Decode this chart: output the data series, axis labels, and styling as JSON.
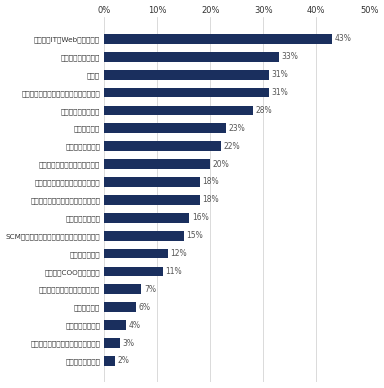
{
  "categories": [
    "技術系（IT・Web・通信系）",
    "経理・財務・会計系",
    "営業系",
    "技術系（建築・設備・土木・プラント）",
    "経営企画・事業企画",
    "人事・総務系",
    "マーケティング系",
    "技術系（電気・電子・半導体）",
    "法務・コンプライアンス・知財系",
    "技術系（機械・メカトロ・自動車）",
    "コンサルタント系",
    "SCM・ロジスティクス・物流・購買・貿易系",
    "不動産系専門職",
    "経営者・COO・経営幹部",
    "技術・専門職系（メディカル）",
    "金融系専門職",
    "サービス・流通系",
    "技術系（化学・素材・食品・衣料）",
    "クリエイティブ系"
  ],
  "values": [
    43,
    33,
    31,
    31,
    28,
    23,
    22,
    20,
    18,
    18,
    16,
    15,
    12,
    11,
    7,
    6,
    4,
    3,
    2
  ],
  "bar_color": "#1a2f5e",
  "label_color": "#333333",
  "value_color": "#555555",
  "xlim": [
    0,
    50
  ],
  "xticks": [
    0,
    10,
    20,
    30,
    40,
    50
  ],
  "xtick_labels": [
    "0%",
    "10%",
    "20%",
    "30%",
    "40%",
    "50%"
  ],
  "bar_height": 0.55,
  "figsize": [
    3.84,
    3.88
  ],
  "dpi": 100,
  "label_fontsize": 5.2,
  "value_fontsize": 5.5,
  "tick_fontsize": 6.0,
  "background_color": "#ffffff"
}
